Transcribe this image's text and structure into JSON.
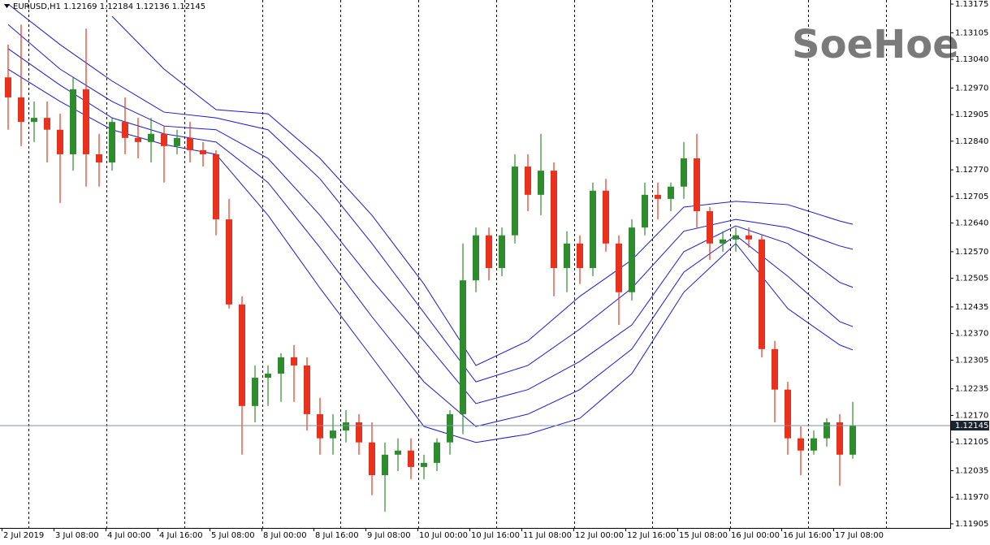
{
  "chart_data": {
    "type": "candlestick",
    "title": "EURUSD,H1  1.12169 1.12184 1.12136 1.12145",
    "watermark": "SoeHoe",
    "categories": [
      "2 Jul 2019",
      null,
      null,
      null,
      "3 Jul 08:00",
      null,
      null,
      null,
      "4 Jul 00:00",
      null,
      null,
      null,
      "4 Jul 16:00",
      null,
      null,
      null,
      "5 Jul 08:00",
      null,
      null,
      null,
      "8 Jul 00:00",
      null,
      null,
      null,
      "8 Jul 16:00",
      null,
      null,
      null,
      "9 Jul 08:00",
      null,
      null,
      null,
      "10 Jul 00:00",
      null,
      null,
      null,
      "10 Jul 16:00",
      null,
      null,
      null,
      "11 Jul 08:00",
      null,
      null,
      null,
      "12 Jul 00:00",
      null,
      null,
      null,
      "12 Jul 16:00",
      null,
      null,
      null,
      "15 Jul 08:00",
      null,
      null,
      null,
      "16 Jul 00:00",
      null,
      null,
      null,
      "16 Jul 16:00",
      null,
      null,
      null,
      "17 Jul 08:00",
      null
    ],
    "open": [
      1.12996,
      1.12947,
      1.12887,
      1.12897,
      1.12868,
      1.12808,
      1.12967,
      1.12808,
      1.12788,
      1.12887,
      1.12848,
      1.12838,
      1.12858,
      1.12828,
      1.12848,
      1.12818,
      1.12808,
      1.12649,
      1.12441,
      1.12193,
      1.12262,
      1.12272,
      1.12312,
      1.12292,
      1.12173,
      1.12114,
      1.12133,
      1.12153,
      1.12104,
      1.12024,
      1.12074,
      1.12084,
      1.12044,
      1.12054,
      1.12104,
      1.12173,
      1.125,
      1.1261,
      1.1253,
      1.1261,
      1.12778,
      1.12709,
      1.12768,
      1.1253,
      1.1259,
      1.1253,
      1.12719,
      1.1259,
      1.12471,
      1.12629,
      1.12709,
      1.12699,
      1.12729,
      1.12798,
      1.12669,
      1.1259,
      1.126,
      1.1261,
      1.126,
      1.12332,
      1.12233,
      1.12114,
      1.12084,
      1.12114,
      1.12153,
      1.12074
    ],
    "high": [
      1.13076,
      1.13125,
      1.12937,
      1.12937,
      1.12907,
      1.12996,
      1.13115,
      1.12858,
      1.12897,
      1.12947,
      1.12897,
      1.12897,
      1.12877,
      1.12868,
      1.12887,
      1.12838,
      1.12818,
      1.12699,
      1.12461,
      1.12292,
      1.12292,
      1.12322,
      1.12342,
      1.12312,
      1.12213,
      1.12173,
      1.12183,
      1.12173,
      1.12153,
      1.12104,
      1.12114,
      1.12114,
      1.12074,
      1.12114,
      1.12183,
      1.1259,
      1.12629,
      1.12629,
      1.12629,
      1.12808,
      1.12808,
      1.12858,
      1.12788,
      1.1262,
      1.1261,
      1.12739,
      1.12748,
      1.1261,
      1.12649,
      1.12739,
      1.12739,
      1.12739,
      1.12838,
      1.12858,
      1.12679,
      1.1262,
      1.12629,
      1.12629,
      1.1261,
      1.12352,
      1.12252,
      1.12143,
      1.12133,
      1.12163,
      1.12173,
      1.12203
    ],
    "low": [
      1.12868,
      1.12828,
      1.12838,
      1.12788,
      1.12689,
      1.12768,
      1.12729,
      1.12729,
      1.12768,
      1.12808,
      1.12798,
      1.12788,
      1.12739,
      1.12808,
      1.12788,
      1.12778,
      1.1261,
      1.12431,
      1.12074,
      1.12153,
      1.12193,
      1.12203,
      1.12203,
      1.12133,
      1.12074,
      1.12074,
      1.12104,
      1.12074,
      1.11975,
      1.11935,
      1.12034,
      1.12014,
      1.12014,
      1.12034,
      1.12074,
      1.12124,
      1.12471,
      1.125,
      1.1251,
      1.1259,
      1.12669,
      1.12659,
      1.12461,
      1.12471,
      1.12491,
      1.1251,
      1.1257,
      1.12391,
      1.12451,
      1.1261,
      1.12649,
      1.12669,
      1.12699,
      1.12629,
      1.1255,
      1.1257,
      1.1257,
      1.1258,
      1.12312,
      1.12153,
      1.12074,
      1.12024,
      1.12074,
      1.12094,
      1.11998,
      1.12064
    ],
    "close": [
      1.12947,
      1.12887,
      1.12897,
      1.12868,
      1.12808,
      1.12967,
      1.12808,
      1.12788,
      1.12887,
      1.12848,
      1.12838,
      1.12858,
      1.12828,
      1.12848,
      1.12818,
      1.12808,
      1.12649,
      1.12441,
      1.12193,
      1.12262,
      1.12272,
      1.12312,
      1.12292,
      1.12173,
      1.12114,
      1.12133,
      1.12153,
      1.12104,
      1.12024,
      1.12074,
      1.12084,
      1.12044,
      1.12054,
      1.12104,
      1.12173,
      1.125,
      1.1261,
      1.1253,
      1.1261,
      1.12778,
      1.12709,
      1.12768,
      1.1253,
      1.1259,
      1.1253,
      1.12719,
      1.1259,
      1.12471,
      1.12629,
      1.12709,
      1.12699,
      1.12729,
      1.12798,
      1.12669,
      1.1259,
      1.126,
      1.1261,
      1.126,
      1.12332,
      1.12233,
      1.12114,
      1.12084,
      1.12114,
      1.12153,
      1.12074,
      1.12145
    ],
    "up_color": "#2e8b2e",
    "down_color": "#e8321e",
    "band_color": "#1a1acc",
    "band_x": [
      0,
      4,
      8,
      12,
      16,
      20,
      24,
      28,
      32,
      36,
      40,
      44,
      48,
      52,
      56,
      60,
      64,
      65
    ],
    "bands": [
      {
        "values": [
          null,
          null,
          1.13145,
          1.13016,
          1.12917,
          1.12907,
          1.12798,
          1.12659,
          1.12491,
          1.12292,
          1.12352,
          1.12461,
          1.1255,
          1.12679,
          1.12693,
          1.12685,
          1.12645,
          1.12637
        ]
      },
      {
        "values": [
          1.13175,
          1.13076,
          1.12987,
          1.12911,
          1.12897,
          1.12868,
          1.12748,
          1.1259,
          1.12421,
          1.12252,
          1.12292,
          1.12381,
          1.12481,
          1.1262,
          1.12649,
          1.12629,
          1.12584,
          1.12576
        ]
      },
      {
        "values": [
          1.13125,
          1.13016,
          1.12937,
          1.12877,
          1.12868,
          1.12798,
          1.12659,
          1.125,
          1.12352,
          1.12199,
          1.12233,
          1.12302,
          1.12391,
          1.1257,
          1.12633,
          1.1259,
          1.12495,
          1.12483
        ]
      },
      {
        "values": [
          1.13066,
          1.12977,
          1.12897,
          1.12858,
          1.12838,
          1.12739,
          1.1258,
          1.12411,
          1.12252,
          1.12143,
          1.12173,
          1.12233,
          1.12332,
          1.1252,
          1.1261,
          1.1251,
          1.12399,
          1.12387
        ]
      },
      {
        "values": [
          1.13016,
          1.12937,
          1.12868,
          1.12832,
          1.12808,
          1.12659,
          1.12481,
          1.12312,
          1.12143,
          1.12104,
          1.12124,
          1.12163,
          1.12272,
          1.12471,
          1.1259,
          1.12431,
          1.12342,
          1.1233
        ]
      }
    ],
    "current_price": 1.12145,
    "ylim": [
      1.11895,
      1.13185
    ],
    "yticks": [
      1.13175,
      1.13105,
      {
        "value": 1.1304,
        "label": "1.13040"
      },
      {
        "value": 1.1297,
        "label": "1.12970"
      },
      1.12905,
      {
        "value": 1.1284,
        "label": "1.12840"
      },
      {
        "value": 1.1277,
        "label": "1.12770"
      },
      1.12705,
      {
        "value": 1.1264,
        "label": "1.12640"
      },
      {
        "value": 1.1257,
        "label": "1.12570"
      },
      1.12505,
      1.12435,
      {
        "value": 1.1237,
        "label": "1.12370"
      },
      1.12305,
      1.12235,
      {
        "value": 1.1217,
        "label": "1.12170"
      },
      1.12105,
      1.12035,
      {
        "value": 1.1197,
        "label": "1.11970"
      },
      1.11905
    ]
  }
}
